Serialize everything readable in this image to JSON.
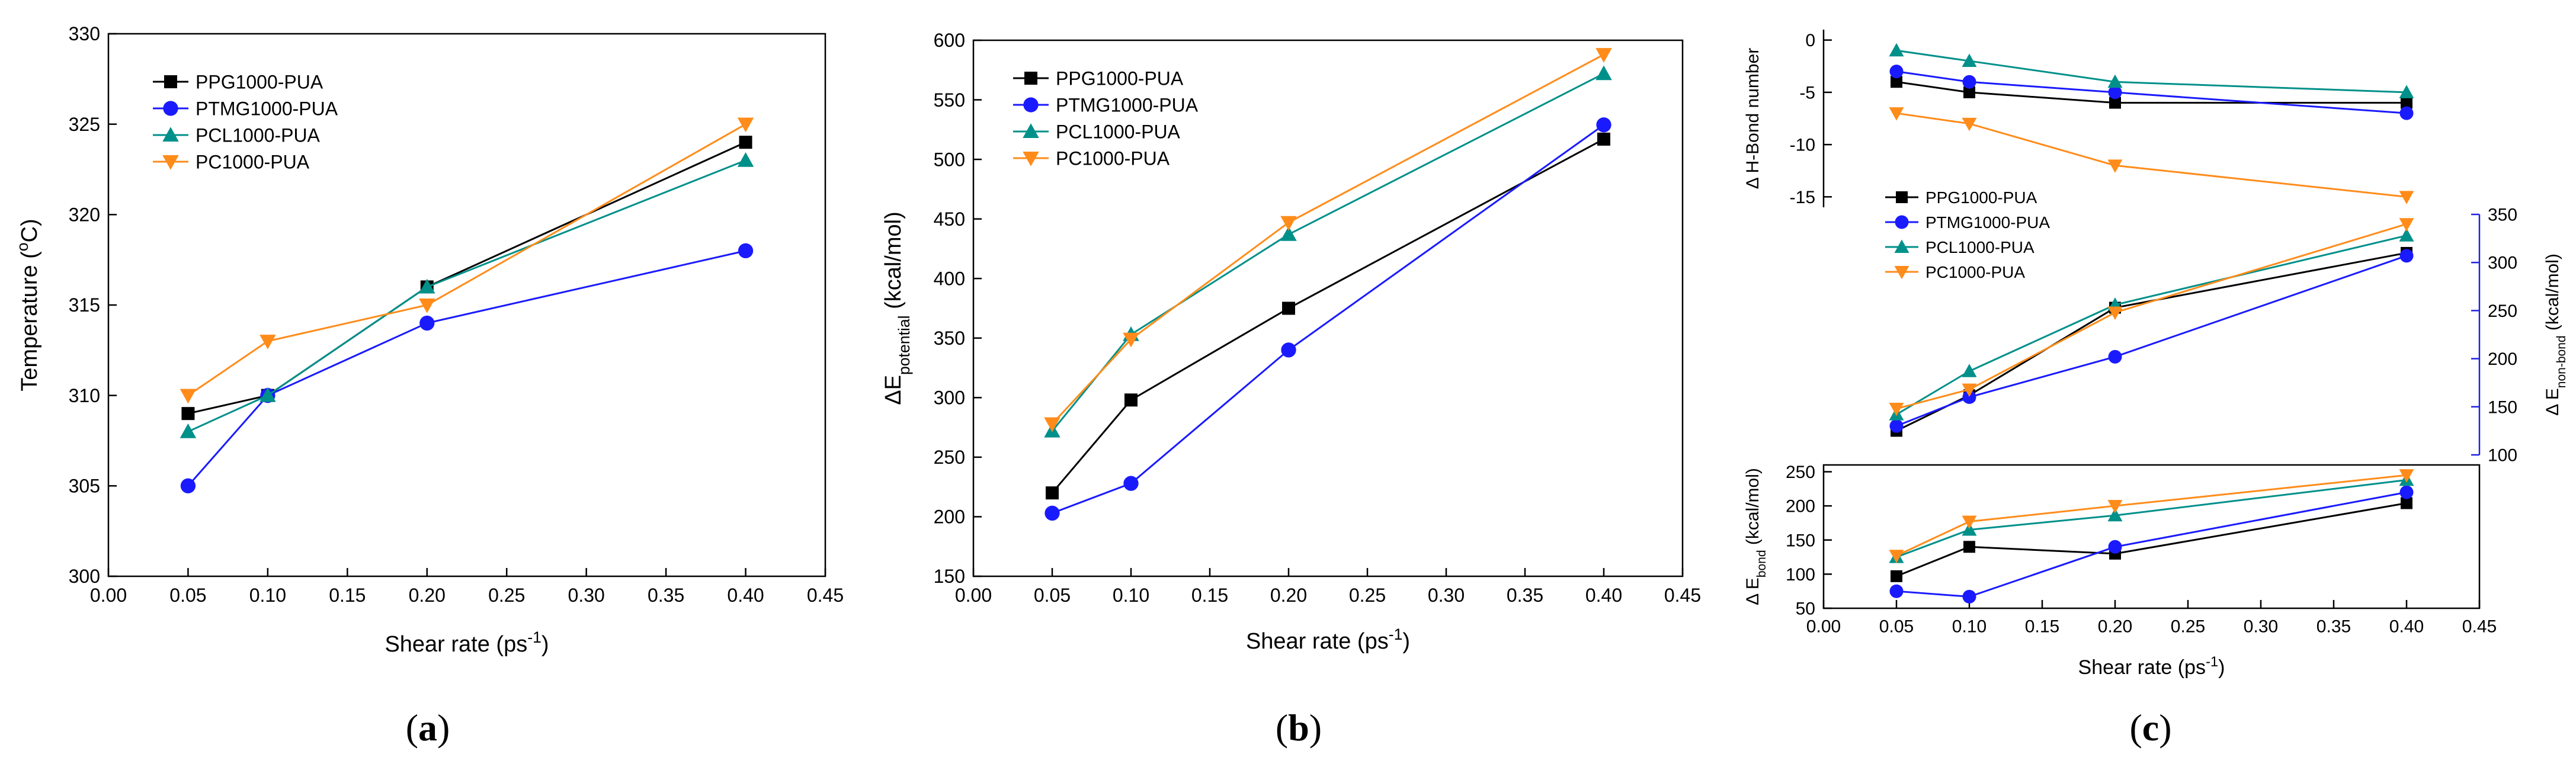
{
  "colors": {
    "PPG1000-PUA": "#000000",
    "PTMG1000-PUA": "#1a1aff",
    "PCL1000-PUA": "#00908a",
    "PC1000-PUA": "#ff8c1a",
    "enb_axis": "#2020e0"
  },
  "chart_data": [
    {
      "type": "line",
      "panel": "a",
      "caption_pre": "(",
      "caption_letter": "a",
      "caption_post": ")",
      "xlabel": "Shear rate (ps",
      "xlabel_sup": "-1",
      "xlabel_post": ")",
      "ylabel": "Temperature (",
      "ylabel_sup": "o",
      "ylabel_post": "C)",
      "xlim": [
        0,
        0.45
      ],
      "ylim": [
        300,
        330
      ],
      "xticks": [
        "0.00",
        "0.05",
        "0.10",
        "0.15",
        "0.20",
        "0.25",
        "0.30",
        "0.35",
        "0.40",
        "0.45"
      ],
      "yticks": [
        "300",
        "305",
        "310",
        "315",
        "320",
        "325",
        "330"
      ],
      "x": [
        0.05,
        0.1,
        0.2,
        0.4
      ],
      "legend": [
        "PPG1000-PUA",
        "PTMG1000-PUA",
        "PCL1000-PUA",
        "PC1000-PUA"
      ],
      "series": [
        {
          "name": "PPG1000-PUA",
          "values": [
            309,
            310,
            316,
            324
          ]
        },
        {
          "name": "PTMG1000-PUA",
          "values": [
            305,
            310,
            314,
            318
          ]
        },
        {
          "name": "PCL1000-PUA",
          "values": [
            308,
            310,
            316,
            323
          ]
        },
        {
          "name": "PC1000-PUA",
          "values": [
            310,
            313,
            315,
            325
          ]
        }
      ]
    },
    {
      "type": "line",
      "panel": "b",
      "caption_pre": "(",
      "caption_letter": "b",
      "caption_post": ")",
      "xlabel": "Shear rate (ps",
      "xlabel_sup": "-1",
      "xlabel_post": ")",
      "ylabel": "ΔE",
      "ylabel_sub": "potential",
      "ylabel_post": "  (kcal/mol)",
      "xlim": [
        0,
        0.45
      ],
      "ylim": [
        150,
        600
      ],
      "xticks": [
        "0.00",
        "0.05",
        "0.10",
        "0.15",
        "0.20",
        "0.25",
        "0.30",
        "0.35",
        "0.40",
        "0.45"
      ],
      "yticks": [
        "150",
        "200",
        "250",
        "300",
        "350",
        "400",
        "450",
        "500",
        "550",
        "600"
      ],
      "x": [
        0.05,
        0.1,
        0.2,
        0.4
      ],
      "legend": [
        "PPG1000-PUA",
        "PTMG1000-PUA",
        "PCL1000-PUA",
        "PC1000-PUA"
      ],
      "series": [
        {
          "name": "PPG1000-PUA",
          "values": [
            220,
            298,
            375,
            517
          ]
        },
        {
          "name": "PTMG1000-PUA",
          "values": [
            203,
            228,
            340,
            529
          ]
        },
        {
          "name": "PCL1000-PUA",
          "values": [
            272,
            353,
            437,
            572
          ]
        },
        {
          "name": "PC1000-PUA",
          "values": [
            278,
            349,
            447,
            588
          ]
        }
      ]
    },
    {
      "type": "line",
      "panel": "c-top",
      "ylabel": "Δ H-Bond number",
      "xlim": [
        0,
        0.45
      ],
      "ylim": [
        -16,
        1
      ],
      "yticks": [
        "0",
        "-5",
        "-10",
        "-15"
      ],
      "x": [
        0.05,
        0.1,
        0.2,
        0.4
      ],
      "series": [
        {
          "name": "PPG1000-PUA",
          "values": [
            -4,
            -5,
            -6,
            -6
          ]
        },
        {
          "name": "PTMG1000-PUA",
          "values": [
            -3,
            -4,
            -5,
            -7
          ]
        },
        {
          "name": "PCL1000-PUA",
          "values": [
            -1,
            -2,
            -4,
            -5
          ]
        },
        {
          "name": "PC1000-PUA",
          "values": [
            -7,
            -8,
            -12,
            -15
          ]
        }
      ]
    },
    {
      "type": "line",
      "panel": "c-middle",
      "ylabel": "Δ E",
      "ylabel_sub": "non-bond",
      "ylabel_post": " (kcal/mol)",
      "axis_side": "right",
      "xlim": [
        0,
        0.45
      ],
      "ylim": [
        100,
        350
      ],
      "yticks": [
        "100",
        "150",
        "200",
        "250",
        "300",
        "350"
      ],
      "x": [
        0.05,
        0.1,
        0.2,
        0.4
      ],
      "legend": [
        "PPG1000-PUA",
        "PTMG1000-PUA",
        "PCL1000-PUA",
        "PC1000-PUA"
      ],
      "series": [
        {
          "name": "PPG1000-PUA",
          "values": [
            125,
            162,
            253,
            310
          ]
        },
        {
          "name": "PTMG1000-PUA",
          "values": [
            130,
            160,
            202,
            307
          ]
        },
        {
          "name": "PCL1000-PUA",
          "values": [
            142,
            187,
            256,
            328
          ]
        },
        {
          "name": "PC1000-PUA",
          "values": [
            148,
            168,
            248,
            340
          ]
        }
      ]
    },
    {
      "type": "line",
      "panel": "c-bottom",
      "caption_pre": "(",
      "caption_letter": "c",
      "caption_post": ")",
      "xlabel": "Shear rate (ps",
      "xlabel_sup": "-1",
      "xlabel_post": ")",
      "ylabel": "Δ E",
      "ylabel_sub": "bond",
      "ylabel_post": " (kcal/mol)",
      "xlim": [
        0,
        0.45
      ],
      "ylim": [
        50,
        260
      ],
      "xticks": [
        "0.00",
        "0.05",
        "0.10",
        "0.15",
        "0.20",
        "0.25",
        "0.30",
        "0.35",
        "0.40",
        "0.45"
      ],
      "yticks": [
        "50",
        "100",
        "150",
        "200",
        "250"
      ],
      "x": [
        0.05,
        0.1,
        0.2,
        0.4
      ],
      "series": [
        {
          "name": "PPG1000-PUA",
          "values": [
            97,
            140,
            130,
            204
          ]
        },
        {
          "name": "PTMG1000-PUA",
          "values": [
            75,
            67,
            140,
            220
          ]
        },
        {
          "name": "PCL1000-PUA",
          "values": [
            125,
            165,
            186,
            238
          ]
        },
        {
          "name": "PC1000-PUA",
          "values": [
            127,
            177,
            200,
            245
          ]
        }
      ]
    }
  ]
}
